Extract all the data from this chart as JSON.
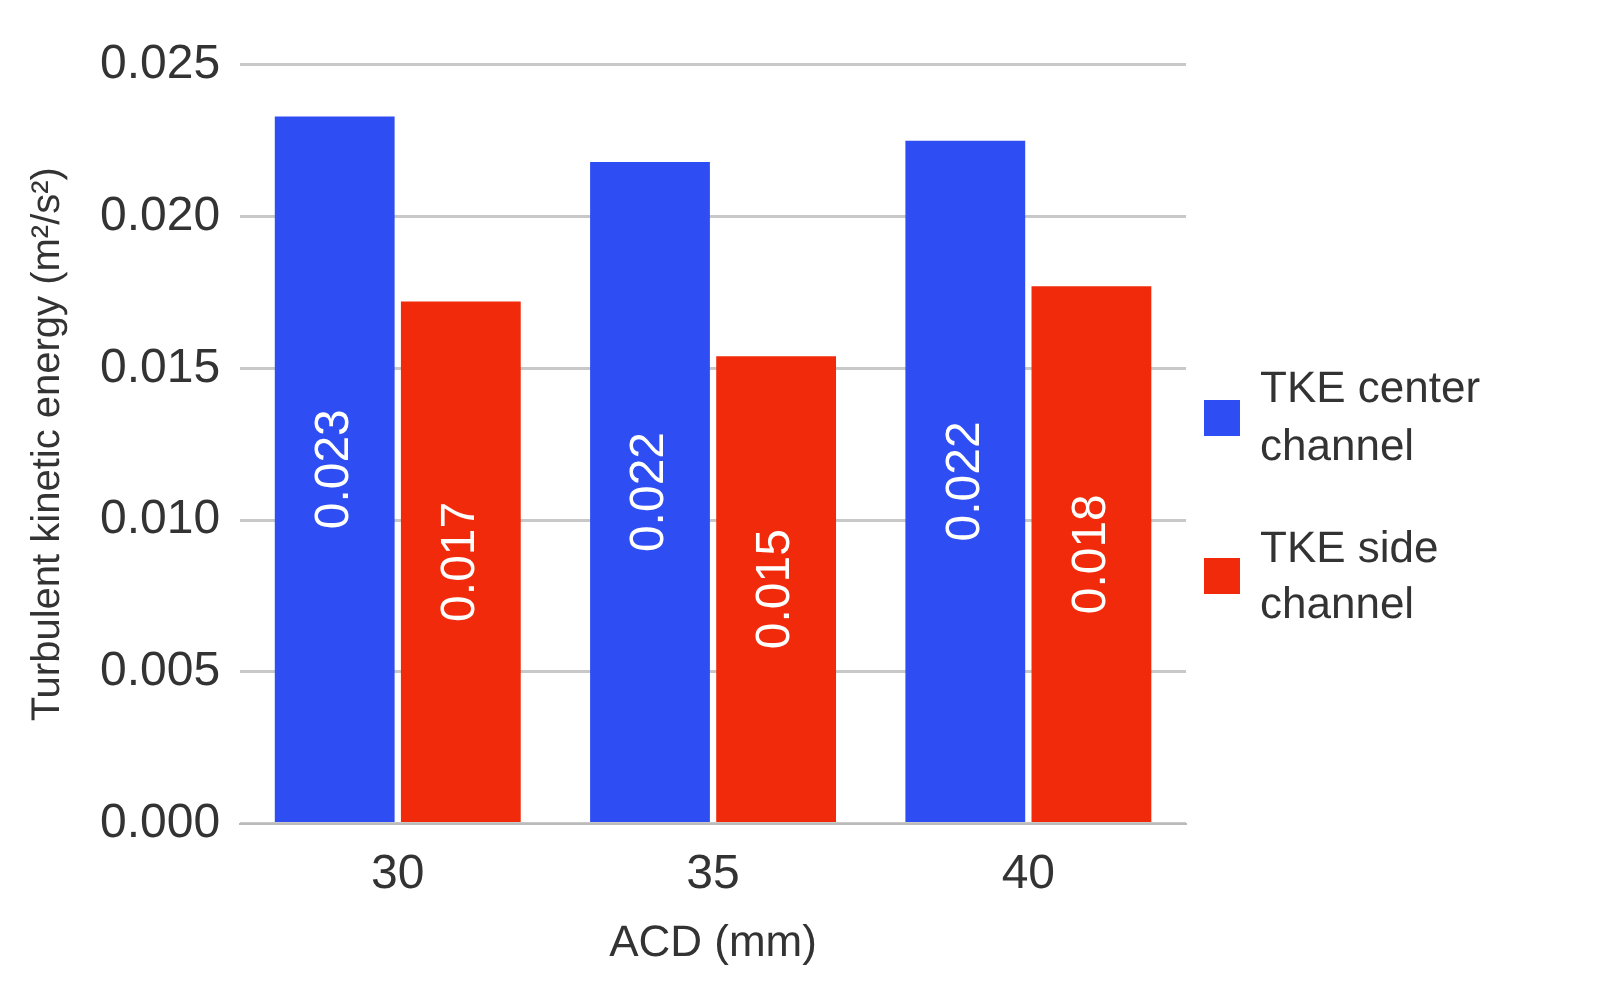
{
  "chart_data": {
    "type": "bar",
    "xlabel": "ACD (mm)",
    "ylabel": "Turbulent kinetic energy (m²/s²)",
    "categories": [
      "30",
      "35",
      "40"
    ],
    "series": [
      {
        "name": "TKE center channel",
        "color": "#2e4df2",
        "values": [
          0.0233,
          0.0218,
          0.0225
        ],
        "value_labels": [
          "0.023",
          "0.022",
          "0.022"
        ]
      },
      {
        "name": "TKE side channel",
        "color": "#f02a0b",
        "values": [
          0.0172,
          0.0154,
          0.0177
        ],
        "value_labels": [
          "0.017",
          "0.015",
          "0.018"
        ]
      }
    ],
    "ylim": [
      0,
      0.025
    ],
    "yticks": [
      {
        "value": 0,
        "label": "0.000"
      },
      {
        "value": 0.005,
        "label": "0.005"
      },
      {
        "value": 0.01,
        "label": "0.010"
      },
      {
        "value": 0.015,
        "label": "0.015"
      },
      {
        "value": 0.02,
        "label": "0.020"
      },
      {
        "value": 0.025,
        "label": "0.025"
      }
    ],
    "grid": "y",
    "legend": "right"
  }
}
